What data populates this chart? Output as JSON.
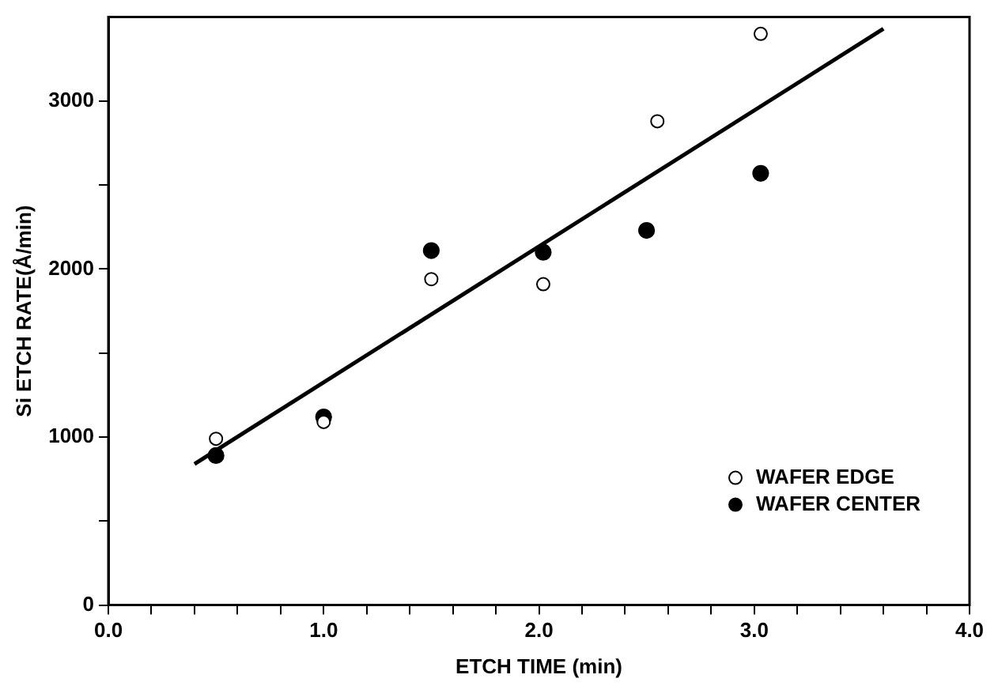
{
  "chart_data": {
    "type": "scatter",
    "xlabel": "ETCH TIME (min)",
    "ylabel": "Si ETCH RATE(Å/min)",
    "xlim": [
      0,
      4
    ],
    "xticks": [
      {
        "value": 0,
        "label": "0.0"
      },
      {
        "value": 0.2,
        "label": null
      },
      {
        "value": 0.4,
        "label": null
      },
      {
        "value": 0.6,
        "label": null
      },
      {
        "value": 0.8,
        "label": null
      },
      {
        "value": 1,
        "label": "1.0"
      },
      {
        "value": 1.2,
        "label": null
      },
      {
        "value": 1.4,
        "label": null
      },
      {
        "value": 1.6,
        "label": null
      },
      {
        "value": 1.8,
        "label": null
      },
      {
        "value": 2,
        "label": "2.0"
      },
      {
        "value": 2.2,
        "label": null
      },
      {
        "value": 2.4,
        "label": null
      },
      {
        "value": 2.6,
        "label": null
      },
      {
        "value": 2.8,
        "label": null
      },
      {
        "value": 3,
        "label": "3.0"
      },
      {
        "value": 3.2,
        "label": null
      },
      {
        "value": 3.4,
        "label": null
      },
      {
        "value": 3.6,
        "label": null
      },
      {
        "value": 3.8,
        "label": null
      },
      {
        "value": 4,
        "label": "4.0"
      }
    ],
    "ylim": [
      0,
      3500
    ],
    "yticks": [
      0,
      {
        "value": 500,
        "label": null
      },
      1000,
      {
        "value": 1500,
        "label": null
      },
      2000,
      {
        "value": 2500,
        "label": null
      },
      3000
    ],
    "grid": false,
    "legend": "bottom right",
    "series": [
      {
        "name": "WAFER EDGE",
        "marker": "circle",
        "color": "#ffffff",
        "x": [
          0.5,
          1.0,
          1.5,
          2.02,
          2.55,
          3.03
        ],
        "values": [
          990,
          1090,
          1940,
          1910,
          2880,
          3400
        ]
      },
      {
        "name": "WAFER CENTER",
        "marker": "circle",
        "color": "#000000",
        "x": [
          0.5,
          1.0,
          1.5,
          2.02,
          2.5,
          3.03
        ],
        "values": [
          890,
          1120,
          2110,
          2100,
          2230,
          2570
        ]
      },
      {
        "type": "line",
        "color": "#000000",
        "x": [
          0.4,
          3.6
        ],
        "values": [
          840,
          3430
        ]
      }
    ]
  }
}
